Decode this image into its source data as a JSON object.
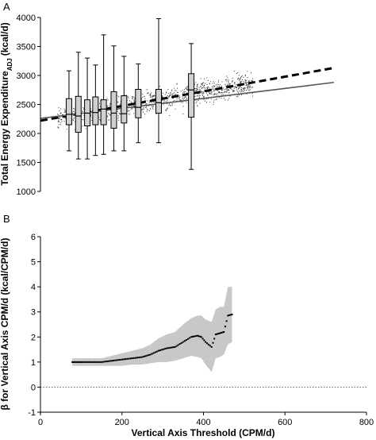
{
  "chart_data": [
    {
      "panel": "A",
      "type": "scatter",
      "title": "",
      "xlabel": "",
      "ylabel": "Total Energy Expenditure",
      "ylabel_sub": "ADJ",
      "ylabel_unit": "(kcal/d)",
      "xlim": [
        0,
        800
      ],
      "ylim": [
        1000,
        4000
      ],
      "yticks": [
        1000,
        1500,
        2000,
        2500,
        3000,
        3500,
        4000
      ],
      "grid": false,
      "boxes": [
        {
          "x": 70,
          "whisker_low": 1700,
          "q1": 2150,
          "median": 2330,
          "q3": 2600,
          "whisker_high": 3080
        },
        {
          "x": 93,
          "whisker_low": 1560,
          "q1": 2020,
          "median": 2300,
          "q3": 2640,
          "whisker_high": 3400
        },
        {
          "x": 115,
          "whisker_low": 1560,
          "q1": 2130,
          "median": 2350,
          "q3": 2580,
          "whisker_high": 3300
        },
        {
          "x": 135,
          "whisker_low": 1620,
          "q1": 2150,
          "median": 2360,
          "q3": 2630,
          "whisker_high": 3180
        },
        {
          "x": 155,
          "whisker_low": 1640,
          "q1": 2150,
          "median": 2420,
          "q3": 2580,
          "whisker_high": 3700
        },
        {
          "x": 180,
          "whisker_low": 1700,
          "q1": 2090,
          "median": 2350,
          "q3": 2720,
          "whisker_high": 3510
        },
        {
          "x": 205,
          "whisker_low": 1700,
          "q1": 2180,
          "median": 2340,
          "q3": 2650,
          "whisker_high": 3330
        },
        {
          "x": 240,
          "whisker_low": 1840,
          "q1": 2270,
          "median": 2450,
          "q3": 2760,
          "whisker_high": 3200
        },
        {
          "x": 290,
          "whisker_low": 1840,
          "q1": 2350,
          "median": 2530,
          "q3": 2760,
          "whisker_high": 3980
        },
        {
          "x": 370,
          "whisker_low": 1380,
          "q1": 2280,
          "median": 2750,
          "q3": 3030,
          "whisker_high": 3550
        }
      ],
      "lines": [
        {
          "style": "dashed",
          "color": "#000000",
          "x": [
            0,
            720
          ],
          "y": [
            2220,
            3130
          ]
        },
        {
          "style": "solid",
          "color": "#555555",
          "x": [
            0,
            720
          ],
          "y": [
            2260,
            2880
          ]
        }
      ],
      "scatter": {
        "x_range": [
          0,
          520
        ],
        "count": 1100,
        "color": "#333333"
      }
    },
    {
      "panel": "B",
      "type": "line",
      "title": "",
      "xlabel": "Vertical Axis Threshold (CPM/d)",
      "ylabel": "β for Vertical Axis CPM/d (kcal/CPM/d)",
      "xlim": [
        0,
        800
      ],
      "ylim": [
        -1,
        6
      ],
      "xticks": [
        0,
        200,
        400,
        600,
        800
      ],
      "yticks": [
        -1,
        0,
        1,
        2,
        3,
        4,
        5,
        6
      ],
      "reference_line": {
        "y": 0,
        "style": "dotted"
      },
      "band_color": "#c8c8c8",
      "grid": false,
      "series": [
        {
          "x": [
            78,
            100,
            125,
            150,
            175,
            200,
            225,
            250,
            270,
            290,
            310,
            330,
            350,
            370,
            385,
            395,
            405,
            420,
            430,
            440,
            450,
            460,
            470
          ],
          "y": [
            1.0,
            1.0,
            1.0,
            1.0,
            1.05,
            1.1,
            1.15,
            1.2,
            1.3,
            1.45,
            1.55,
            1.6,
            1.8,
            2.0,
            2.05,
            2.0,
            1.8,
            1.6,
            2.1,
            2.15,
            2.2,
            2.85,
            2.9
          ],
          "ci_low": [
            0.85,
            0.85,
            0.85,
            0.85,
            0.85,
            0.85,
            0.9,
            0.9,
            0.95,
            1.0,
            1.0,
            1.05,
            1.15,
            1.25,
            1.2,
            1.15,
            0.9,
            0.6,
            1.15,
            1.2,
            1.3,
            1.7,
            1.8
          ],
          "ci_high": [
            1.15,
            1.15,
            1.15,
            1.15,
            1.25,
            1.35,
            1.45,
            1.55,
            1.7,
            1.95,
            2.1,
            2.2,
            2.5,
            2.75,
            2.85,
            2.85,
            2.7,
            2.6,
            3.1,
            3.2,
            3.2,
            4.0,
            4.0
          ]
        }
      ]
    }
  ]
}
